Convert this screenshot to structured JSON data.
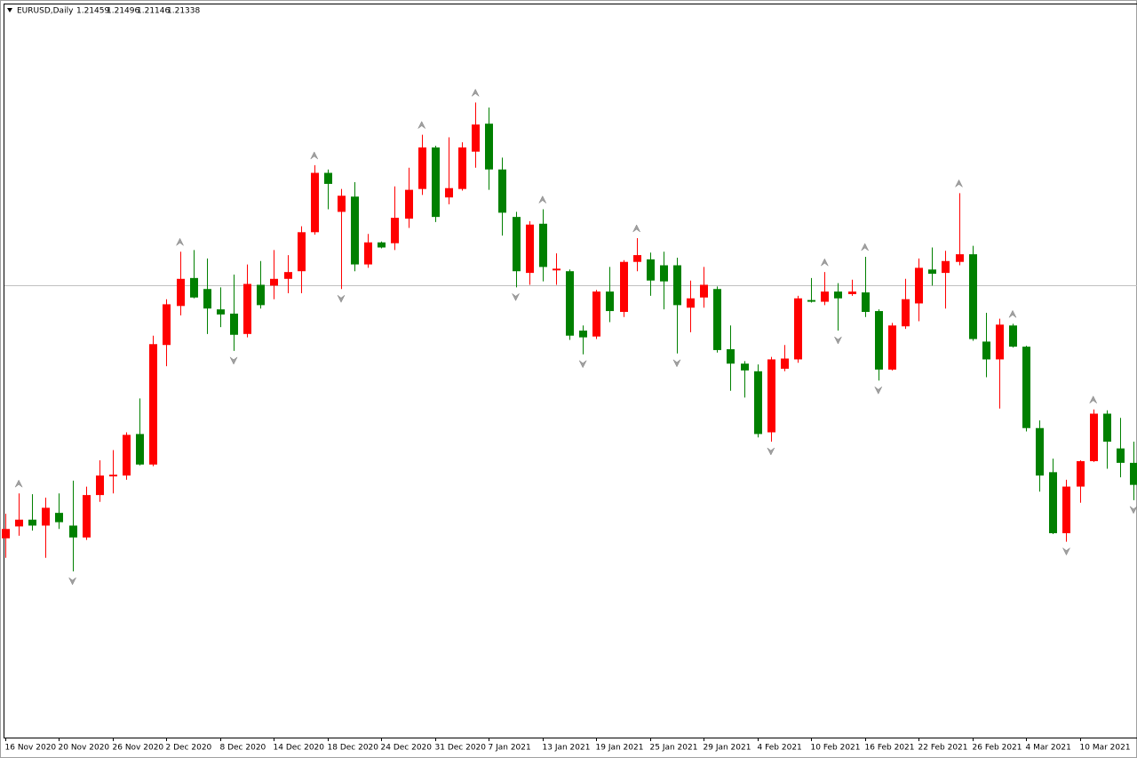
{
  "chart_data": {
    "type": "candlestick",
    "title": "EURUSD,Daily",
    "header_values": [
      1.21459,
      1.21496,
      1.21146,
      1.21338
    ],
    "categories": [
      "16 Nov 2020",
      null,
      null,
      null,
      "20 Nov 2020",
      null,
      null,
      null,
      "26 Nov 2020",
      null,
      null,
      null,
      "2 Dec 2020",
      null,
      null,
      null,
      "8 Dec 2020",
      null,
      null,
      null,
      "14 Dec 2020",
      null,
      null,
      null,
      "18 Dec 2020",
      null,
      null,
      null,
      "24 Dec 2020",
      null,
      null,
      null,
      "31 Dec 2020",
      null,
      null,
      null,
      "7 Jan 2021",
      null,
      null,
      null,
      "13 Jan 2021",
      null,
      null,
      null,
      "19 Jan 2021",
      null,
      null,
      null,
      "25 Jan 2021",
      null,
      null,
      null,
      "29 Jan 2021",
      null,
      null,
      null,
      "4 Feb 2021",
      null,
      null,
      null,
      "10 Feb 2021",
      null,
      null,
      null,
      "16 Feb 2021",
      null,
      null,
      null,
      "22 Feb 2021",
      null,
      null,
      null,
      "26 Feb 2021",
      null,
      null,
      null,
      "4 Mar 2021",
      null,
      null,
      null,
      "10 Mar 2021",
      null,
      null,
      null,
      null
    ],
    "open": [
      1.1835,
      1.1849,
      1.1857,
      1.185,
      1.1865,
      1.185,
      1.1836,
      1.1886,
      1.1908,
      1.1909,
      1.1958,
      1.1922,
      1.2063,
      1.2109,
      1.2142,
      1.2129,
      1.2105,
      1.21,
      1.2076,
      1.2134,
      1.2133,
      1.2141,
      1.215,
      1.2196,
      1.2266,
      1.222,
      1.2238,
      1.2158,
      1.2184,
      1.2183,
      1.2212,
      1.2247,
      1.2296,
      1.2237,
      1.2247,
      1.2291,
      1.2324,
      1.227,
      1.2214,
      1.2148,
      1.2206,
      1.2151,
      1.215,
      1.208,
      1.2073,
      1.2126,
      1.2102,
      1.2161,
      1.2164,
      1.2157,
      1.2157,
      1.2107,
      1.2119,
      1.2129,
      1.2058,
      1.2041,
      1.2032,
      1.196,
      1.2035,
      1.2046,
      1.2116,
      1.2114,
      1.2126,
      1.2123,
      1.2125,
      1.2103,
      1.2034,
      1.2085,
      1.2112,
      1.2152,
      1.2148,
      1.2161,
      1.217,
      1.2067,
      1.2046,
      1.2086,
      1.2061,
      1.1965,
      1.1913,
      1.1841,
      1.1896,
      1.1926,
      1.1982,
      1.1941,
      1.1924
    ],
    "high": [
      1.1864,
      1.1888,
      1.1887,
      1.1883,
      1.1888,
      1.1903,
      1.1896,
      1.1927,
      1.1939,
      1.196,
      1.2,
      1.2074,
      1.2117,
      1.2173,
      1.2175,
      1.2165,
      1.2131,
      1.2146,
      1.2158,
      1.2162,
      1.2175,
      1.2169,
      1.2203,
      1.2275,
      1.227,
      1.2247,
      1.2255,
      1.2194,
      1.2185,
      1.225,
      1.2272,
      1.2311,
      1.2298,
      1.2308,
      1.2302,
      1.2349,
      1.2343,
      1.2284,
      1.222,
      1.2209,
      1.2223,
      1.2171,
      1.2152,
      1.2086,
      1.2128,
      1.2155,
      1.2163,
      1.2189,
      1.2172,
      1.2173,
      1.2166,
      1.2139,
      1.2155,
      1.2132,
      1.2086,
      1.2044,
      1.204,
      1.2049,
      1.2063,
      1.2121,
      1.2142,
      1.2149,
      1.2136,
      1.214,
      1.2167,
      1.2105,
      1.2089,
      1.2141,
      1.2165,
      1.2178,
      1.2174,
      1.2242,
      1.218,
      1.2101,
      1.2094,
      1.2088,
      1.2062,
      1.1974,
      1.1929,
      1.1904,
      1.1927,
      1.1987,
      1.1986,
      1.1977,
      1.1949
    ],
    "low": [
      1.1812,
      1.1838,
      1.1844,
      1.1812,
      1.1846,
      1.1796,
      1.1833,
      1.1878,
      1.1888,
      1.1904,
      1.1921,
      1.192,
      1.2038,
      1.2098,
      1.2118,
      1.2076,
      1.2084,
      1.2056,
      1.2072,
      1.2106,
      1.2117,
      1.2124,
      1.2124,
      1.2193,
      1.2223,
      1.2129,
      1.215,
      1.2154,
      1.2177,
      1.2175,
      1.2201,
      1.224,
      1.2208,
      1.2229,
      1.2245,
      1.2272,
      1.2246,
      1.2192,
      1.2131,
      1.2134,
      1.2138,
      1.2134,
      1.2069,
      1.2052,
      1.207,
      1.209,
      1.2096,
      1.215,
      1.2121,
      1.2105,
      1.2053,
      1.2078,
      1.2107,
      1.2054,
      1.2009,
      1.2001,
      1.1954,
      1.1949,
      1.2032,
      1.2042,
      1.2113,
      1.211,
      1.208,
      1.2121,
      1.2096,
      1.2021,
      1.2033,
      1.2082,
      1.2091,
      1.2133,
      1.2106,
      1.2157,
      1.2068,
      1.2025,
      1.1988,
      1.206,
      1.1961,
      1.189,
      1.184,
      1.1831,
      1.1877,
      1.1925,
      1.1917,
      1.1907,
      1.188
    ],
    "close": [
      1.1846,
      1.1857,
      1.185,
      1.1871,
      1.1854,
      1.1836,
      1.1886,
      1.1909,
      1.191,
      1.1957,
      1.1922,
      1.2064,
      1.2111,
      1.2141,
      1.2119,
      1.2106,
      1.2099,
      1.2075,
      1.2135,
      1.211,
      1.2141,
      1.2149,
      1.2196,
      1.2266,
      1.2253,
      1.2239,
      1.2158,
      1.2184,
      1.2178,
      1.2213,
      1.2246,
      1.2296,
      1.2214,
      1.2248,
      1.2296,
      1.2323,
      1.227,
      1.2219,
      1.215,
      1.2205,
      1.2155,
      1.2153,
      1.2074,
      1.2072,
      1.2126,
      1.2103,
      1.2161,
      1.2169,
      1.2139,
      1.2138,
      1.211,
      1.2118,
      1.2134,
      1.2057,
      1.2041,
      1.2033,
      1.1958,
      1.2046,
      1.2047,
      1.2118,
      1.2114,
      1.2126,
      1.2118,
      1.2126,
      1.2102,
      1.2034,
      1.2086,
      1.2117,
      1.2154,
      1.2147,
      1.2162,
      1.217,
      1.207,
      1.2046,
      1.2087,
      1.2061,
      1.1965,
      1.1909,
      1.1841,
      1.1896,
      1.1926,
      1.1982,
      1.1949,
      1.1924,
      1.1898
    ],
    "up_color": "#ff0000",
    "down_color": "#008000",
    "up_fractals": [
      1,
      13,
      23,
      31,
      35,
      40,
      47,
      61,
      64,
      71,
      75,
      81
    ],
    "down_fractals": [
      5,
      17,
      25,
      38,
      43,
      50,
      57,
      62,
      65,
      79,
      84
    ],
    "ylim": [
      1.16,
      1.2451
    ]
  }
}
